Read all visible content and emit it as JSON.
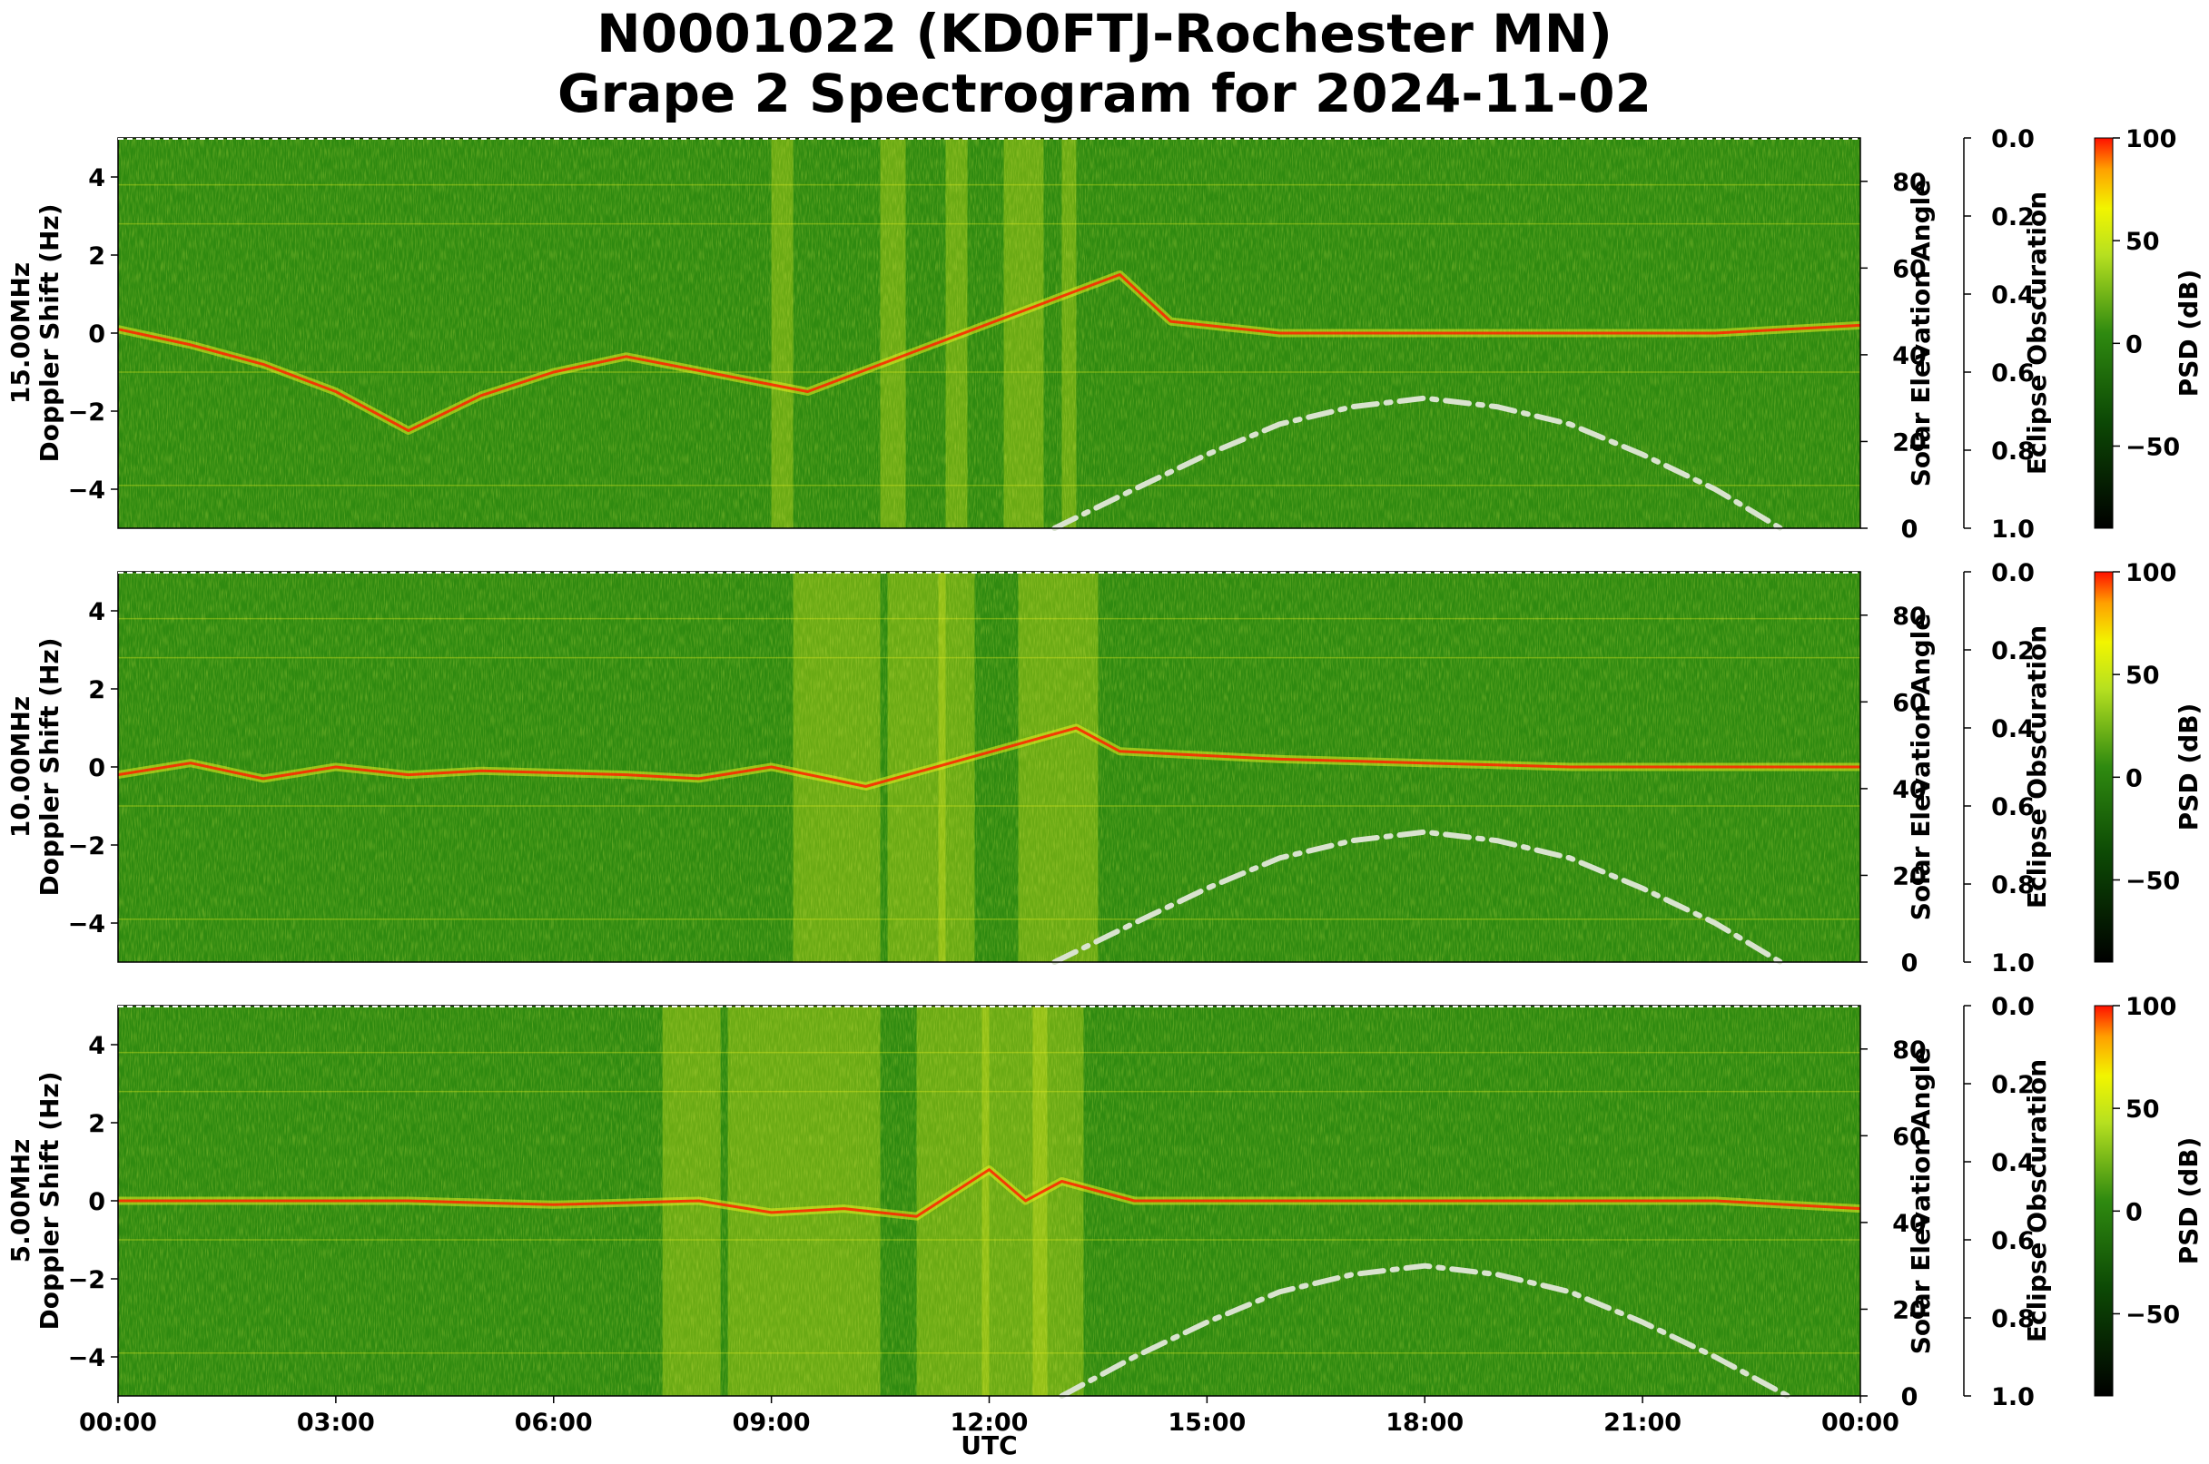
{
  "figure": {
    "title_line1": "N0001022 (KD0FTJ-Rochester MN)",
    "title_line2": "Grape 2 Spectrogram for 2024-11-02",
    "xlabel": "UTC"
  },
  "colors": {
    "background_green": "#2f8a10",
    "signal_yellow": "#e8f020",
    "peak_red": "#ff2000",
    "solar_curve": "#d9e3cf"
  },
  "chart_data": [
    {
      "type": "heatmap",
      "panel": "15.00MHz",
      "ylabel_line1": "15.00MHz",
      "ylabel_line2": "Doppler Shift (Hz)",
      "ylim": [
        -5,
        5
      ],
      "yticks": [
        4,
        2,
        0,
        -2,
        -4
      ],
      "x_range_utc": [
        "00:00",
        "24:00"
      ],
      "right_axis": {
        "label": "Solar Elevation Angle",
        "ticks": [
          80,
          60,
          40,
          20,
          0
        ],
        "lim": [
          0,
          90
        ]
      },
      "eclipse_axis": {
        "label": "Eclipse Obscuration",
        "ticks": [
          "0.0",
          "0.2",
          "0.4",
          "0.6",
          "0.8",
          "1.0"
        ]
      },
      "colorbar": {
        "label": "PSD (dB)",
        "ticks": [
          100,
          50,
          0,
          -50
        ]
      },
      "trace_doppler_hz": [
        [
          0.0,
          0.1
        ],
        [
          1.0,
          -0.3
        ],
        [
          2.0,
          -0.8
        ],
        [
          3.0,
          -1.5
        ],
        [
          4.0,
          -2.5
        ],
        [
          5.0,
          -1.6
        ],
        [
          6.0,
          -1.0
        ],
        [
          7.0,
          -0.6
        ],
        [
          9.5,
          -1.5
        ],
        [
          13.8,
          1.5
        ],
        [
          14.5,
          0.3
        ],
        [
          16,
          0.0
        ],
        [
          18,
          0.0
        ],
        [
          20,
          0.0
        ],
        [
          22,
          0.0
        ],
        [
          24,
          0.2
        ]
      ],
      "solar_elevation_deg": [
        [
          12.9,
          0
        ],
        [
          14,
          9
        ],
        [
          15,
          17
        ],
        [
          16,
          24
        ],
        [
          17,
          28
        ],
        [
          18,
          30
        ],
        [
          19,
          28
        ],
        [
          20,
          24
        ],
        [
          21,
          17
        ],
        [
          22,
          9
        ],
        [
          22.9,
          0
        ]
      ]
    },
    {
      "type": "heatmap",
      "panel": "10.00MHz",
      "ylabel_line1": "10.00MHz",
      "ylabel_line2": "Doppler Shift (Hz)",
      "ylim": [
        -5,
        5
      ],
      "yticks": [
        4,
        2,
        0,
        -2,
        -4
      ],
      "x_range_utc": [
        "00:00",
        "24:00"
      ],
      "right_axis": {
        "label": "Solar Elevation Angle",
        "ticks": [
          80,
          60,
          40,
          20,
          0
        ],
        "lim": [
          0,
          90
        ]
      },
      "eclipse_axis": {
        "label": "Eclipse Obscuration",
        "ticks": [
          "0.0",
          "0.2",
          "0.4",
          "0.6",
          "0.8",
          "1.0"
        ]
      },
      "colorbar": {
        "label": "PSD (dB)",
        "ticks": [
          100,
          50,
          0,
          -50
        ]
      },
      "trace_doppler_hz": [
        [
          0.0,
          -0.2
        ],
        [
          1.0,
          0.1
        ],
        [
          2.0,
          -0.3
        ],
        [
          3.0,
          0.0
        ],
        [
          4.0,
          -0.2
        ],
        [
          5.0,
          -0.1
        ],
        [
          7.0,
          -0.2
        ],
        [
          8.0,
          -0.3
        ],
        [
          9.0,
          0.0
        ],
        [
          10.3,
          -0.5
        ],
        [
          13.2,
          1.0
        ],
        [
          13.8,
          0.4
        ],
        [
          16,
          0.2
        ],
        [
          18,
          0.1
        ],
        [
          20,
          0.0
        ],
        [
          22,
          0.0
        ],
        [
          24,
          0.0
        ]
      ],
      "solar_elevation_deg": [
        [
          12.9,
          0
        ],
        [
          14,
          9
        ],
        [
          15,
          17
        ],
        [
          16,
          24
        ],
        [
          17,
          28
        ],
        [
          18,
          30
        ],
        [
          19,
          28
        ],
        [
          20,
          24
        ],
        [
          21,
          17
        ],
        [
          22,
          9
        ],
        [
          22.9,
          0
        ]
      ]
    },
    {
      "type": "heatmap",
      "panel": "5.00MHz",
      "ylabel_line1": "5.00MHz",
      "ylabel_line2": "Doppler Shift (Hz)",
      "ylim": [
        -5,
        5
      ],
      "yticks": [
        4,
        2,
        0,
        -2,
        -4
      ],
      "xticks": [
        "00:00",
        "03:00",
        "06:00",
        "09:00",
        "12:00",
        "15:00",
        "18:00",
        "21:00",
        "00:00"
      ],
      "x_range_utc": [
        "00:00",
        "24:00"
      ],
      "right_axis": {
        "label": "Solar Elevation Angle",
        "ticks": [
          80,
          60,
          40,
          20,
          0
        ],
        "lim": [
          0,
          90
        ]
      },
      "eclipse_axis": {
        "label": "Eclipse Obscuration",
        "ticks": [
          "0.0",
          "0.2",
          "0.4",
          "0.6",
          "0.8",
          "1.0"
        ]
      },
      "colorbar": {
        "label": "PSD (dB)",
        "ticks": [
          100,
          50,
          0,
          -50
        ]
      },
      "trace_doppler_hz": [
        [
          0,
          0.0
        ],
        [
          2,
          0.0
        ],
        [
          4,
          0.0
        ],
        [
          6,
          -0.1
        ],
        [
          8,
          0.0
        ],
        [
          9,
          -0.3
        ],
        [
          10,
          -0.2
        ],
        [
          11,
          -0.4
        ],
        [
          12,
          0.8
        ],
        [
          12.5,
          0.0
        ],
        [
          13,
          0.5
        ],
        [
          14,
          0.0
        ],
        [
          18,
          0.0
        ],
        [
          22,
          0.0
        ],
        [
          24,
          -0.2
        ]
      ],
      "solar_elevation_deg": [
        [
          13.0,
          0
        ],
        [
          14,
          9
        ],
        [
          15,
          17
        ],
        [
          16,
          24
        ],
        [
          17,
          28
        ],
        [
          18,
          30
        ],
        [
          19,
          28
        ],
        [
          20,
          24
        ],
        [
          21,
          17
        ],
        [
          22,
          9
        ],
        [
          23.0,
          0
        ]
      ]
    }
  ]
}
